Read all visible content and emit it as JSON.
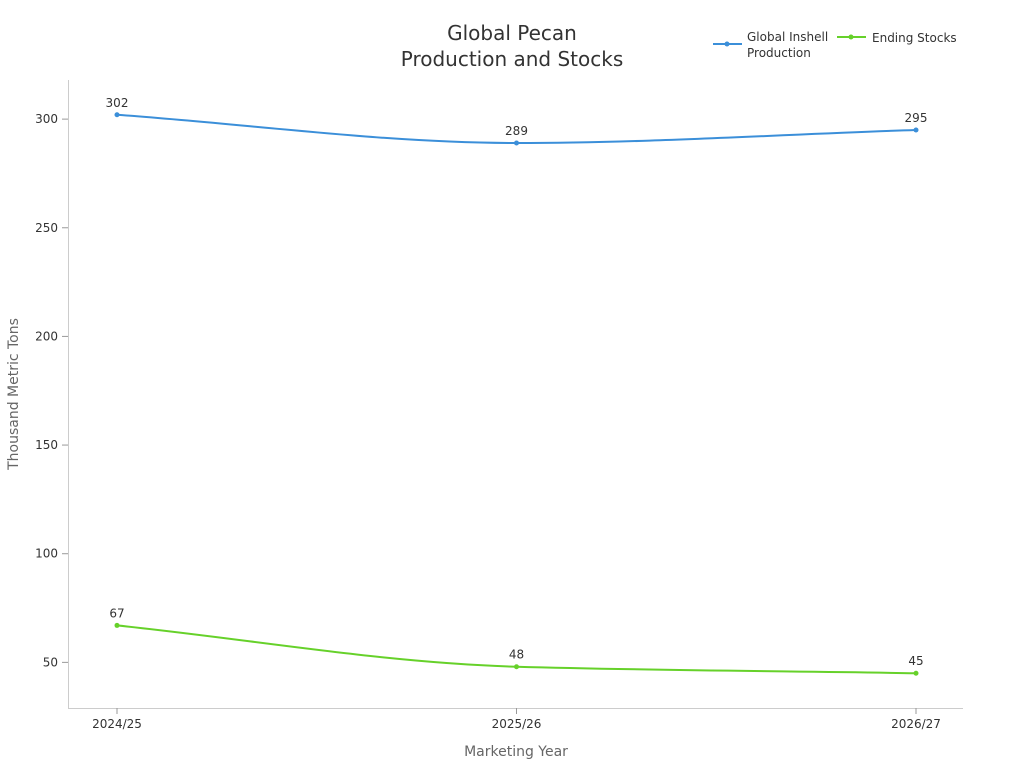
{
  "chart_data": {
    "type": "line",
    "title_lines": [
      "Global Pecan",
      "Production and Stocks"
    ],
    "xlabel": "Marketing Year",
    "ylabel": "Thousand Metric Tons",
    "categories": [
      "2024/25",
      "2025/26",
      "2026/27"
    ],
    "ylim": [
      29,
      318
    ],
    "yticks": [
      50,
      100,
      150,
      200,
      250,
      300
    ],
    "ytick_labels": [
      "50",
      "100",
      "150",
      "200",
      "250",
      "300"
    ],
    "grid": false,
    "legend_position": "top-right",
    "smooth": true,
    "series": [
      {
        "name_lines": [
          "Global Inshell",
          "Production"
        ],
        "values": [
          302,
          289,
          295
        ],
        "labels": [
          "302",
          "289",
          "295"
        ],
        "color": "#3b8fd9"
      },
      {
        "name_lines": [
          "Ending Stocks"
        ],
        "values": [
          67,
          48,
          45
        ],
        "labels": [
          "67",
          "48",
          "45"
        ],
        "color": "#66d12a"
      }
    ]
  }
}
